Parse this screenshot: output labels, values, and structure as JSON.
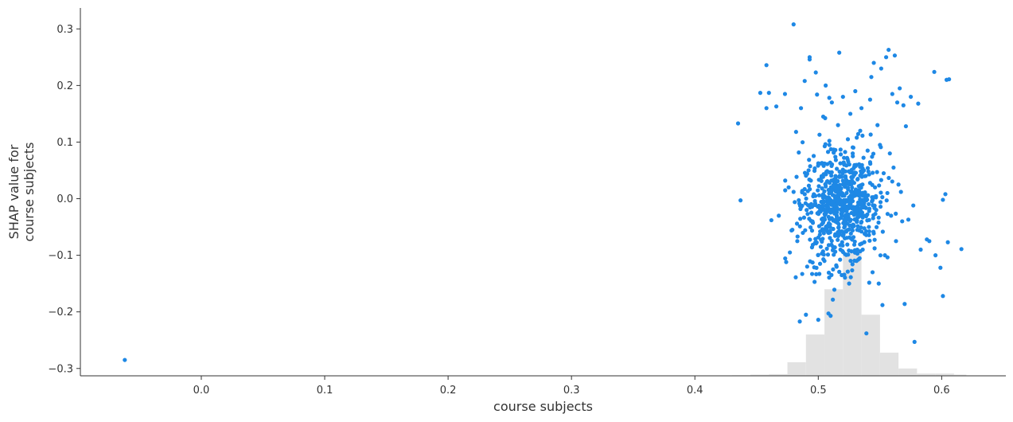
{
  "chart_data": {
    "type": "scatter",
    "title": "",
    "xlabel": "course subjects",
    "ylabel_lines": [
      "SHAP value for",
      "course subjects"
    ],
    "xlim": [
      -0.098,
      0.652
    ],
    "ylim": [
      -0.313,
      0.337
    ],
    "xticks": [
      0.0,
      0.1,
      0.2,
      0.3,
      0.4,
      0.5,
      0.6
    ],
    "xtick_labels": [
      "0.0",
      "0.1",
      "0.2",
      "0.3",
      "0.4",
      "0.5",
      "0.6"
    ],
    "yticks": [
      0.3,
      0.2,
      0.1,
      0.0,
      -0.1,
      -0.2,
      -0.3
    ],
    "ytick_labels": [
      "0.3",
      "0.2",
      "0.1",
      "0.0",
      "−0.1",
      "−0.2",
      "−0.3"
    ],
    "grid": false,
    "point_color": "#1e88e5",
    "histogram_color": "#e2e2e2",
    "histogram": {
      "bin_edges": [
        -0.065,
        -0.05,
        0.43,
        0.445,
        0.46,
        0.475,
        0.49,
        0.505,
        0.52,
        0.535,
        0.55,
        0.565,
        0.58,
        0.595,
        0.61,
        0.62
      ],
      "bin_tops_y": [
        -0.313,
        -0.313,
        -0.312,
        -0.311,
        -0.31,
        -0.289,
        -0.24,
        -0.16,
        -0.095,
        -0.205,
        -0.272,
        -0.3,
        -0.309,
        -0.309,
        -0.311,
        -0.313
      ]
    },
    "points": [
      {
        "x": -0.062,
        "y": -0.285
      },
      {
        "x": 0.435,
        "y": 0.133
      },
      {
        "x": 0.437,
        "y": -0.003
      },
      {
        "x": 0.453,
        "y": 0.187
      },
      {
        "x": 0.458,
        "y": 0.236
      },
      {
        "x": 0.458,
        "y": 0.16
      },
      {
        "x": 0.46,
        "y": 0.187
      },
      {
        "x": 0.462,
        "y": -0.038
      },
      {
        "x": 0.466,
        "y": 0.163
      },
      {
        "x": 0.468,
        "y": -0.03
      },
      {
        "x": 0.473,
        "y": 0.185
      },
      {
        "x": 0.474,
        "y": -0.112
      },
      {
        "x": 0.476,
        "y": 0.02
      },
      {
        "x": 0.477,
        "y": -0.095
      },
      {
        "x": 0.479,
        "y": -0.055
      },
      {
        "x": 0.48,
        "y": 0.308
      },
      {
        "x": 0.48,
        "y": 0.012
      },
      {
        "x": 0.482,
        "y": 0.118
      },
      {
        "x": 0.483,
        "y": -0.075
      },
      {
        "x": 0.485,
        "y": -0.217
      },
      {
        "x": 0.486,
        "y": 0.16
      },
      {
        "x": 0.487,
        "y": -0.133
      },
      {
        "x": 0.489,
        "y": 0.208
      },
      {
        "x": 0.49,
        "y": -0.205
      },
      {
        "x": 0.491,
        "y": -0.12
      },
      {
        "x": 0.493,
        "y": 0.25
      },
      {
        "x": 0.493,
        "y": 0.246
      },
      {
        "x": 0.494,
        "y": 0.032
      },
      {
        "x": 0.495,
        "y": -0.133
      },
      {
        "x": 0.497,
        "y": -0.147
      },
      {
        "x": 0.498,
        "y": 0.223
      },
      {
        "x": 0.499,
        "y": 0.184
      },
      {
        "x": 0.5,
        "y": -0.214
      },
      {
        "x": 0.501,
        "y": 0.113
      },
      {
        "x": 0.502,
        "y": -0.085
      },
      {
        "x": 0.503,
        "y": 0.063
      },
      {
        "x": 0.504,
        "y": 0.145
      },
      {
        "x": 0.505,
        "y": -0.11
      },
      {
        "x": 0.506,
        "y": 0.2
      },
      {
        "x": 0.507,
        "y": 0.03
      },
      {
        "x": 0.508,
        "y": -0.06
      },
      {
        "x": 0.509,
        "y": 0.095
      },
      {
        "x": 0.51,
        "y": -0.207
      },
      {
        "x": 0.511,
        "y": 0.17
      },
      {
        "x": 0.512,
        "y": -0.125
      },
      {
        "x": 0.513,
        "y": 0.005
      },
      {
        "x": 0.514,
        "y": 0.04
      },
      {
        "x": 0.515,
        "y": -0.02
      },
      {
        "x": 0.516,
        "y": 0.13
      },
      {
        "x": 0.517,
        "y": 0.258
      },
      {
        "x": 0.518,
        "y": -0.09
      },
      {
        "x": 0.519,
        "y": -0.135
      },
      {
        "x": 0.52,
        "y": 0.18
      },
      {
        "x": 0.521,
        "y": 0.06
      },
      {
        "x": 0.522,
        "y": -0.045
      },
      {
        "x": 0.523,
        "y": 0.01
      },
      {
        "x": 0.524,
        "y": 0.105
      },
      {
        "x": 0.525,
        "y": -0.15
      },
      {
        "x": 0.526,
        "y": 0.15
      },
      {
        "x": 0.527,
        "y": -0.07
      },
      {
        "x": 0.528,
        "y": 0.075
      },
      {
        "x": 0.529,
        "y": -0.015
      },
      {
        "x": 0.53,
        "y": 0.19
      },
      {
        "x": 0.531,
        "y": -0.11
      },
      {
        "x": 0.532,
        "y": 0.035
      },
      {
        "x": 0.533,
        "y": -0.03
      },
      {
        "x": 0.534,
        "y": 0.12
      },
      {
        "x": 0.535,
        "y": 0.16
      },
      {
        "x": 0.536,
        "y": -0.09
      },
      {
        "x": 0.537,
        "y": 0.05
      },
      {
        "x": 0.538,
        "y": 0.0
      },
      {
        "x": 0.539,
        "y": -0.238
      },
      {
        "x": 0.54,
        "y": 0.085
      },
      {
        "x": 0.541,
        "y": -0.05
      },
      {
        "x": 0.542,
        "y": 0.175
      },
      {
        "x": 0.543,
        "y": 0.215
      },
      {
        "x": 0.544,
        "y": -0.13
      },
      {
        "x": 0.545,
        "y": 0.24
      },
      {
        "x": 0.546,
        "y": 0.02
      },
      {
        "x": 0.547,
        "y": -0.02
      },
      {
        "x": 0.548,
        "y": 0.13
      },
      {
        "x": 0.549,
        "y": -0.15
      },
      {
        "x": 0.55,
        "y": 0.095
      },
      {
        "x": 0.551,
        "y": 0.23
      },
      {
        "x": 0.552,
        "y": -0.188
      },
      {
        "x": 0.553,
        "y": 0.045
      },
      {
        "x": 0.554,
        "y": -0.1
      },
      {
        "x": 0.555,
        "y": 0.25
      },
      {
        "x": 0.556,
        "y": 0.01
      },
      {
        "x": 0.557,
        "y": 0.263
      },
      {
        "x": 0.558,
        "y": 0.08
      },
      {
        "x": 0.559,
        "y": -0.03
      },
      {
        "x": 0.56,
        "y": 0.185
      },
      {
        "x": 0.561,
        "y": 0.055
      },
      {
        "x": 0.562,
        "y": 0.253
      },
      {
        "x": 0.563,
        "y": -0.075
      },
      {
        "x": 0.564,
        "y": 0.17
      },
      {
        "x": 0.565,
        "y": 0.025
      },
      {
        "x": 0.566,
        "y": 0.195
      },
      {
        "x": 0.567,
        "y": 0.012
      },
      {
        "x": 0.568,
        "y": -0.04
      },
      {
        "x": 0.569,
        "y": 0.165
      },
      {
        "x": 0.57,
        "y": -0.186
      },
      {
        "x": 0.571,
        "y": 0.128
      },
      {
        "x": 0.573,
        "y": -0.037
      },
      {
        "x": 0.575,
        "y": 0.18
      },
      {
        "x": 0.577,
        "y": -0.012
      },
      {
        "x": 0.578,
        "y": -0.253
      },
      {
        "x": 0.581,
        "y": 0.168
      },
      {
        "x": 0.583,
        "y": -0.09
      },
      {
        "x": 0.588,
        "y": -0.072
      },
      {
        "x": 0.59,
        "y": -0.075
      },
      {
        "x": 0.594,
        "y": 0.224
      },
      {
        "x": 0.595,
        "y": -0.1
      },
      {
        "x": 0.599,
        "y": -0.122
      },
      {
        "x": 0.601,
        "y": -0.002
      },
      {
        "x": 0.601,
        "y": -0.172
      },
      {
        "x": 0.603,
        "y": 0.008
      },
      {
        "x": 0.604,
        "y": 0.21
      },
      {
        "x": 0.605,
        "y": -0.077
      },
      {
        "x": 0.606,
        "y": 0.211
      },
      {
        "x": 0.616,
        "y": -0.089
      }
    ],
    "cluster": {
      "count": 700,
      "x_center": 0.518,
      "x_spread": 0.016,
      "y_center": -0.01,
      "y_spread": 0.055
    }
  }
}
